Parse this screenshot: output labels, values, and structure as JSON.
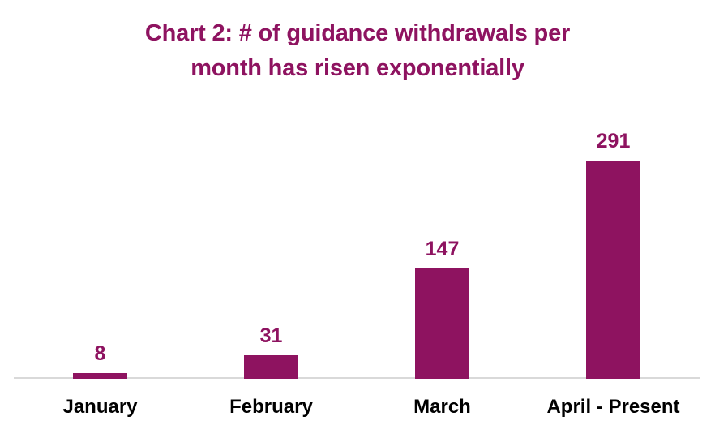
{
  "chart_data": {
    "type": "bar",
    "title": "Chart 2: # of guidance withdrawals per month has risen exponentially",
    "title_lines": [
      "Chart 2: # of guidance withdrawals per",
      "month has risen exponentially"
    ],
    "categories": [
      "January",
      "February",
      "March",
      "April - Present"
    ],
    "values": [
      8,
      31,
      147,
      291
    ],
    "data_labels": [
      "8",
      "31",
      "147",
      "291"
    ],
    "xlabel": "",
    "ylabel": "",
    "grid": false,
    "legend": false,
    "axes_visible": false,
    "colors": {
      "bar": "#8E1360",
      "title": "#8E1360",
      "data_label": "#8E1360",
      "category_label": "#000000",
      "baseline": "#D9D9D9",
      "background": "#FFFFFF"
    }
  }
}
